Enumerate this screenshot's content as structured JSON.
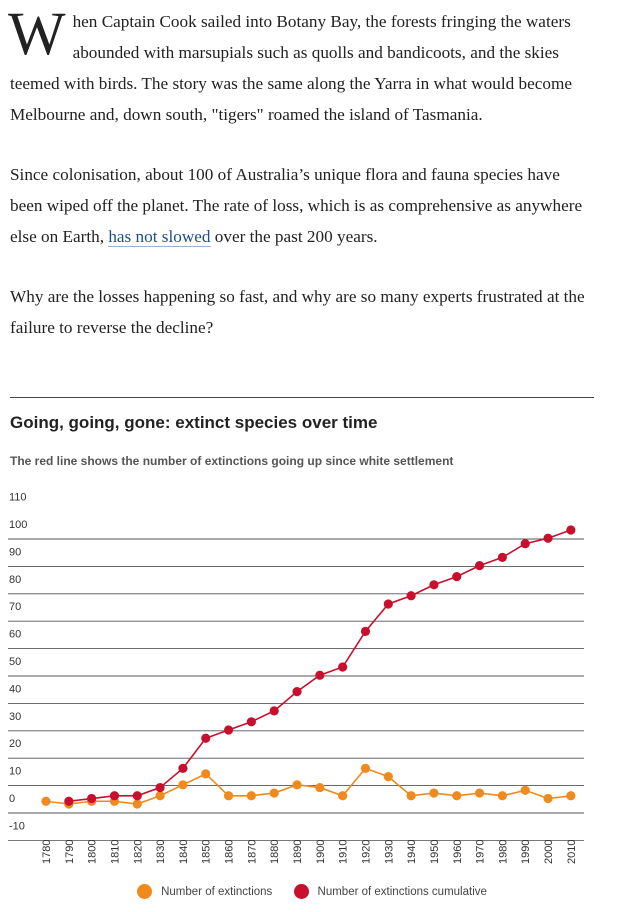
{
  "article": {
    "dropcap": "W",
    "p1_rest": "hen Captain Cook sailed into Botany Bay, the forests fringing the waters abounded with marsupials such as quolls and bandicoots, and the skies teemed with birds. The story was the same along the Yarra in what would become Melbourne and, down south, \"tigers\" roamed the island of Tasmania.",
    "p2_before": "Since colonisation, about 100 of Australia’s unique flora and fauna species have been wiped off the planet. The rate of loss, which is as comprehensive as anywhere else on Earth, ",
    "p2_link": "has not slowed",
    "p2_after": " over the past 200 years.",
    "p3": "Why are the losses happening so fast, and why are so many experts frustrated at the failure to reverse the decline?"
  },
  "chart_data": {
    "type": "line",
    "title": "Going, going, gone: extinct species over time",
    "subtitle": "The red line shows the number of extinctions going up since white settlement",
    "x": [
      "1780",
      "1790",
      "1800",
      "1810",
      "1820",
      "1830",
      "1840",
      "1850",
      "1860",
      "1870",
      "1880",
      "1890",
      "1900",
      "1910",
      "1920",
      "1930",
      "1940",
      "1950",
      "1960",
      "1970",
      "1980",
      "1990",
      "2000",
      "2010"
    ],
    "ylim": [
      -10,
      110
    ],
    "yticks": [
      -10,
      0,
      10,
      20,
      30,
      40,
      50,
      60,
      70,
      80,
      90,
      100,
      110
    ],
    "grid": true,
    "legend_position": "bottom",
    "series": [
      {
        "name": "Number of extinctions",
        "color": "#f08a1c",
        "values": [
          1,
          0,
          1,
          1,
          0,
          3,
          7,
          11,
          3,
          3,
          4,
          7,
          6,
          3,
          13,
          10,
          3,
          4,
          3,
          4,
          3,
          5,
          2,
          3
        ]
      },
      {
        "name": "Number of extinctions cumulative",
        "color": "#c8102e",
        "values": [
          null,
          1,
          2,
          3,
          3,
          6,
          13,
          24,
          27,
          30,
          34,
          41,
          47,
          50,
          63,
          73,
          76,
          80,
          83,
          87,
          90,
          95,
          97,
          100
        ]
      }
    ]
  }
}
